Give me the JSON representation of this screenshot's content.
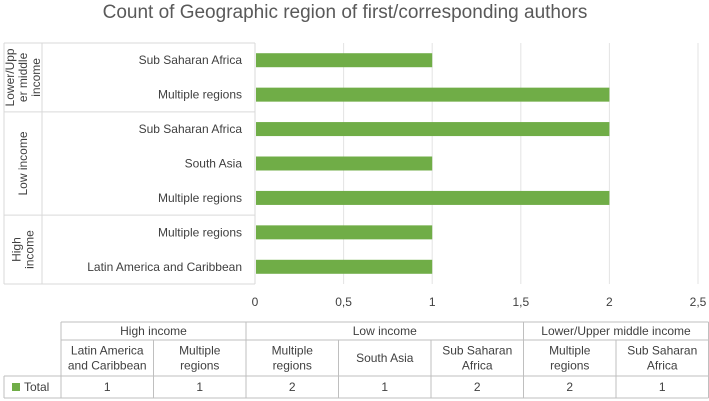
{
  "chart_data": {
    "type": "bar",
    "orientation": "horizontal",
    "title": "Count of Geographic region of first/corresponding authors",
    "groups": [
      {
        "name": "High income",
        "axis_label": [
          "High",
          "income"
        ],
        "categories": [
          "Latin America and Caribbean",
          "Multiple regions"
        ],
        "table_labels": [
          [
            "Latin America",
            "and Caribbean"
          ],
          [
            "Multiple",
            "regions"
          ]
        ],
        "values": [
          1,
          1
        ]
      },
      {
        "name": "Low income",
        "axis_label": [
          "Low income"
        ],
        "categories": [
          "Multiple regions",
          "South Asia",
          "Sub Saharan Africa"
        ],
        "table_labels": [
          [
            "Multiple",
            "regions"
          ],
          [
            "South Asia"
          ],
          [
            "Sub Saharan",
            "Africa"
          ]
        ],
        "values": [
          2,
          1,
          2
        ]
      },
      {
        "name": "Lower/Upper middle income",
        "axis_label": [
          "Lower/Upp",
          "er middle",
          "income"
        ],
        "categories": [
          "Multiple regions",
          "Sub Saharan Africa"
        ],
        "table_labels": [
          [
            "Multiple",
            "regions"
          ],
          [
            "Sub Saharan",
            "Africa"
          ]
        ],
        "values": [
          2,
          1
        ]
      }
    ],
    "series": [
      {
        "name": "Total",
        "color": "#70ad47"
      }
    ],
    "xlim": [
      0,
      2.5
    ],
    "x_ticks": [
      "0",
      "0,5",
      "1",
      "1,5",
      "2",
      "2,5"
    ],
    "grid": true,
    "legend_position": "data table"
  }
}
